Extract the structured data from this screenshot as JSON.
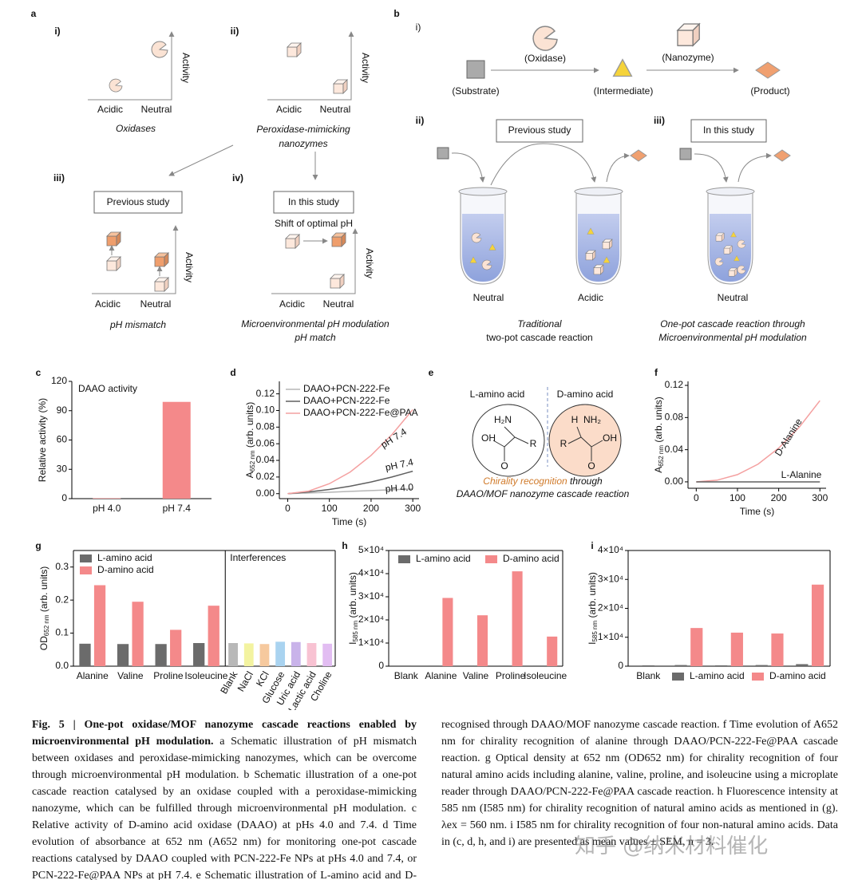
{
  "panels": {
    "a": {
      "letter": "a",
      "sub": [
        "i)",
        "ii)",
        "iii)",
        "iv)"
      ],
      "axis": "Activity",
      "acidic": "Acidic",
      "neutral": "Neutral",
      "oxidases": "Oxidases",
      "nanozymes": [
        "Peroxidase-mimicking",
        "nanozymes"
      ],
      "previous": "Previous study",
      "this": "In this study",
      "shift": "Shift of optimal pH",
      "mismatch": "pH mismatch",
      "modulation": "Microenvironmental pH modulation",
      "match": "pH match"
    },
    "b": {
      "letter": "b",
      "sub": [
        "i)",
        "ii)",
        "iii)"
      ],
      "substrate": "(Substrate)",
      "oxidase": "(Oxidase)",
      "intermediate": "(Intermediate)",
      "nanozyme": "(Nanozyme)",
      "product": "(Product)",
      "previous": "Previous study",
      "this": "In this study",
      "neutral": "Neutral",
      "acidic": "Acidic",
      "traditional": [
        "Traditional",
        "two-pot cascade reaction"
      ],
      "onepot": [
        "One-pot cascade reaction through",
        "Microenvironmental pH modulation"
      ]
    },
    "e": {
      "letter": "e",
      "l": "L-amino acid",
      "d": "D-amino acid",
      "chirality": "Chirality recognition",
      "through": " through",
      "cascade": "DAAO/MOF nanozyme cascade reaction",
      "atoms": [
        "H₂N",
        "R",
        "OH",
        "O",
        "H",
        "NH₂"
      ]
    }
  },
  "chart_data": [
    {
      "type": "bar",
      "label": "c",
      "annotation": "DAAO activity",
      "ylabel": "Relative activity (%)",
      "categories": [
        "pH 4.0",
        "pH 7.4"
      ],
      "values": [
        0.5,
        99
      ],
      "color": "#f4898a",
      "ylim": [
        0,
        120
      ],
      "yticks": [
        0,
        30,
        60,
        90,
        120
      ]
    },
    {
      "type": "line",
      "label": "d",
      "xlabel": "Time (s)",
      "ylabel": {
        "main": "A",
        "sub": "652 nm",
        "rest": " (arb. units)"
      },
      "x": [
        0,
        50,
        100,
        150,
        200,
        250,
        300
      ],
      "series": [
        {
          "name": "DAAO+PCN-222-Fe",
          "color": "#b5b5b5",
          "values": [
            0,
            0.0008,
            0.0017,
            0.0027,
            0.0037,
            0.0047,
            0.0057
          ]
        },
        {
          "name": "DAAO+PCN-222-Fe",
          "color": "#606060",
          "values": [
            0,
            0.002,
            0.005,
            0.009,
            0.014,
            0.02,
            0.027
          ]
        },
        {
          "name": "DAAO+PCN-222-Fe@PAA",
          "color": "#f4a0a0",
          "values": [
            0,
            0.003,
            0.012,
            0.026,
            0.046,
            0.071,
            0.101
          ]
        }
      ],
      "annotations": [
        "pH 7.4",
        "pH 7.4",
        "pH 4.0"
      ],
      "legend": "top-left",
      "xlim": [
        -20,
        315
      ],
      "xticks": [
        0,
        100,
        200,
        300
      ],
      "ylim": [
        -0.006,
        0.135
      ],
      "yticks": [
        {
          "value": 0,
          "label": "0.00"
        },
        {
          "value": 0.02,
          "label": "0.02"
        },
        {
          "value": 0.04,
          "label": "0.04"
        },
        {
          "value": 0.06,
          "label": "0.06"
        },
        {
          "value": 0.08,
          "label": "0.08"
        },
        {
          "value": 0.1,
          "label": "0.10"
        },
        {
          "value": 0.12,
          "label": "0.12"
        }
      ]
    },
    {
      "type": "line",
      "label": "f",
      "xlabel": "Time (s)",
      "ylabel": {
        "main": "A",
        "sub": "652 nm",
        "rest": " (arb. units)"
      },
      "x": [
        0,
        50,
        100,
        150,
        200,
        250,
        300
      ],
      "series": [
        {
          "name": "D-Alanine",
          "color": "#f4a0a0",
          "values": [
            0,
            0.002,
            0.009,
            0.022,
            0.042,
            0.068,
            0.101
          ]
        },
        {
          "name": "L-Alanine",
          "color": "#606060",
          "values": [
            0,
            0,
            0,
            0,
            0,
            0,
            0
          ]
        }
      ],
      "legend": "inline",
      "xlim": [
        -20,
        315
      ],
      "xticks": [
        0,
        100,
        200,
        300
      ],
      "ylim": [
        -0.008,
        0.125
      ],
      "yticks": [
        {
          "value": 0,
          "label": "0.00"
        },
        {
          "value": 0.04,
          "label": "0.04"
        },
        {
          "value": 0.08,
          "label": "0.08"
        },
        {
          "value": 0.12,
          "label": "0.12"
        }
      ]
    },
    {
      "type": "bar",
      "label": "g",
      "ylabel": {
        "main": "OD",
        "sub": "652 nm",
        "rest": " (arb. units)"
      },
      "categories": [
        "Alanine",
        "Valine",
        "Proline",
        "Isoleucine"
      ],
      "series": [
        {
          "name": "L-amino acid",
          "color": "#6b6b6b",
          "values": [
            0.068,
            0.067,
            0.067,
            0.07
          ]
        },
        {
          "name": "D-amino acid",
          "color": "#f4898a",
          "values": [
            0.245,
            0.195,
            0.11,
            0.183
          ]
        }
      ],
      "interferences": {
        "title": "Interferences",
        "categories": [
          "Blank",
          "NaCl",
          "KCl",
          "Glucose",
          "Uric acid",
          "Lactic acid",
          "Choline"
        ],
        "values": [
          0.07,
          0.069,
          0.067,
          0.074,
          0.073,
          0.07,
          0.068
        ],
        "colors": [
          "#b8b8b8",
          "#f3f3a0",
          "#f6c99e",
          "#a9d3f0",
          "#c9b3ea",
          "#f8c2d2",
          "#e2bdf2"
        ]
      },
      "legend": "top-left",
      "ylim": [
        0,
        0.35
      ],
      "yticks": [
        {
          "value": 0,
          "label": "0.0"
        },
        {
          "value": 0.1,
          "label": "0.1"
        },
        {
          "value": 0.2,
          "label": "0.2"
        },
        {
          "value": 0.3,
          "label": "0.3"
        }
      ]
    },
    {
      "type": "bar",
      "label": "h",
      "ylabel": {
        "main": "I",
        "sub": "585 nm",
        "rest": " (arb. units)"
      },
      "categories": [
        "Blank",
        "Alanine",
        "Valine",
        "Proline",
        "Isoleucine"
      ],
      "series": [
        {
          "name": "L-amino acid",
          "color": "#6b6b6b",
          "values": [
            300,
            300,
            300,
            300,
            300
          ]
        },
        {
          "name": "D-amino acid",
          "color": "#f4898a",
          "values": [
            null,
            29500,
            22000,
            41000,
            12800
          ]
        }
      ],
      "legend": "top",
      "ylim": [
        0,
        50000
      ],
      "yticks": [
        0,
        {
          "value": 10000,
          "label": "1×10⁴"
        },
        {
          "value": 20000,
          "label": "2×10⁴"
        },
        {
          "value": 30000,
          "label": "3×10⁴"
        },
        {
          "value": 40000,
          "label": "4×10⁴"
        },
        {
          "value": 50000,
          "label": "5×10⁴"
        }
      ]
    },
    {
      "type": "bar",
      "label": "i",
      "ylabel": {
        "main": "I",
        "sub": "585 nm",
        "rest": " (arb. units)"
      },
      "categories": [
        "Blank",
        null,
        null,
        null,
        null
      ],
      "series": [
        {
          "name": "L-amino acid",
          "color": "#6b6b6b",
          "values": [
            300,
            400,
            300,
            400,
            700
          ]
        },
        {
          "name": "D-amino acid",
          "color": "#f4898a",
          "values": [
            null,
            13200,
            11600,
            11300,
            28200
          ]
        }
      ],
      "legend": "bottom",
      "ylim": [
        0,
        40000
      ],
      "yticks": [
        0,
        {
          "value": 10000,
          "label": "1×10⁴"
        },
        {
          "value": 20000,
          "label": "2×10⁴"
        },
        {
          "value": 30000,
          "label": "3×10⁴"
        },
        {
          "value": 40000,
          "label": "4×10⁴"
        }
      ]
    }
  ],
  "caption": {
    "title": "Fig. 5 | One-pot oxidase/MOF nanozyme cascade reactions enabled by microenvironmental pH modulation.",
    "left": " a Schematic illustration of pH mismatch between oxidases and peroxidase-mimicking nanozymes, which can be overcome through microenvironmental pH modulation. b Schematic illustration of a one-pot cascade reaction catalysed by an oxidase coupled with a peroxidase-mimicking nanozyme, which can be fulfilled through microenvironmental pH modulation. c Relative activity of D-amino acid oxidase (DAAO) at pHs 4.0 and 7.4. d Time evolution of absorbance at 652 nm (A652 nm) for monitoring one-pot cascade reactions catalysed by DAAO coupled with PCN-222-Fe NPs at pHs 4.0 and 7.4, or PCN-222-Fe@PAA NPs at pH 7.4. e Schematic illustration of L-amino acid and D-amino acid, which can be",
    "right": "recognised through DAAO/MOF nanozyme cascade reaction. f Time evolution of A652 nm for chirality recognition of alanine through DAAO/PCN-222-Fe@PAA cascade reaction. g Optical density at 652 nm (OD652 nm) for chirality recognition of four natural amino acids including alanine, valine, proline, and isoleucine using a microplate reader through DAAO/PCN-222-Fe@PAA cascade reaction. h Fluorescence intensity at 585 nm (I585 nm) for chirality recognition of natural amino acids as mentioned in (g). λex = 560 nm. i I585 nm for chirality recognition of four non-natural amino acids. Data in (c, d, h, and i) are presented as mean values ± SEM, n = 3.",
    "watermark": "知乎 @纳米材料催化"
  }
}
